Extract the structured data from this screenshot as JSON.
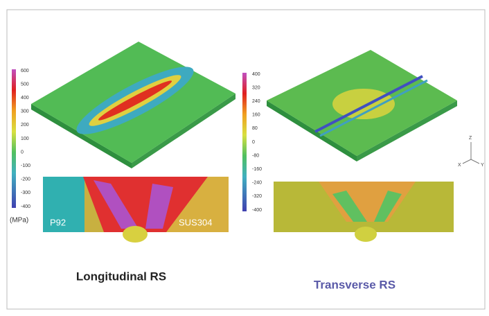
{
  "left_colorbar": {
    "ticks": [
      600,
      500,
      400,
      300,
      200,
      100,
      0,
      -100,
      -200,
      -300,
      -400
    ],
    "unit": "(MPa)"
  },
  "right_colorbar": {
    "ticks": [
      400,
      320,
      240,
      160,
      80,
      0,
      -80,
      -160,
      -240,
      -320,
      -400
    ]
  },
  "left_section": {
    "labels": [
      "P92",
      "SUS304"
    ]
  },
  "captions": [
    "Longitudinal RS",
    "Transverse RS"
  ],
  "axes_triad": [
    "Z",
    "X",
    "Y"
  ]
}
